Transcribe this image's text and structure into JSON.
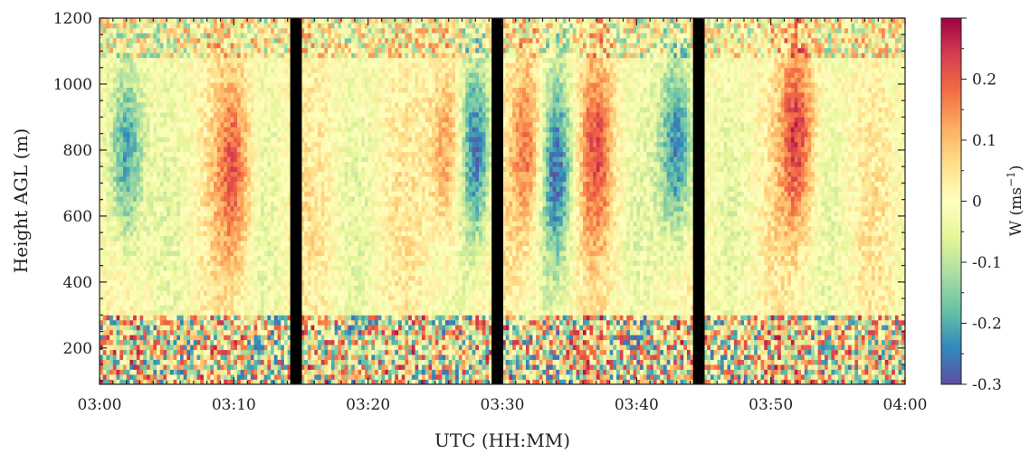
{
  "chart_data": {
    "type": "heatmap",
    "title": "",
    "xlabel": "UTC (HH:MM)",
    "ylabel": "Height AGL (m)",
    "x_range_minutes": [
      0,
      60
    ],
    "xlim": [
      "03:00",
      "04:00"
    ],
    "x_ticks": [
      "03:00",
      "03:10",
      "03:20",
      "03:30",
      "03:40",
      "03:50",
      "04:00"
    ],
    "ylim": [
      90,
      1200
    ],
    "y_ticks": [
      200,
      400,
      600,
      800,
      1000,
      1200
    ],
    "colorbar": {
      "label": "W (ms",
      "label_exp": "−1",
      "label_close": ")",
      "range": [
        -0.3,
        0.3
      ],
      "ticks": [
        "-0.3",
        "-0.2",
        "-0.1",
        "0",
        "0.1",
        "0.2"
      ],
      "colormap": "spectral",
      "colors": [
        "#5e4fa2",
        "#3288bd",
        "#66c2a5",
        "#abdda4",
        "#e6f598",
        "#ffffbf",
        "#fee08b",
        "#fdae61",
        "#f46d43",
        "#d53e4f",
        "#9e0142"
      ]
    },
    "data_gaps": [
      {
        "start": "03:14",
        "end": "03:15"
      },
      {
        "start": "03:29",
        "end": "03:30"
      },
      {
        "start": "03:44",
        "end": "03:45"
      }
    ],
    "features": [
      {
        "time": "03:02",
        "height_center": 780,
        "w": -0.25
      },
      {
        "time": "03:10",
        "height_center": 750,
        "w": 0.18
      },
      {
        "time": "03:26",
        "height_center": 800,
        "w": 0.18
      },
      {
        "time": "03:28",
        "height_center": 800,
        "w": -0.27
      },
      {
        "time": "03:32",
        "height_center": 800,
        "w": 0.2
      },
      {
        "time": "03:34",
        "height_center": 750,
        "w": -0.25
      },
      {
        "time": "03:37",
        "height_center": 800,
        "w": 0.18
      },
      {
        "time": "03:43",
        "height_center": 800,
        "w": -0.27
      },
      {
        "time": "03:52",
        "height_center": 850,
        "w": 0.22
      }
    ]
  }
}
